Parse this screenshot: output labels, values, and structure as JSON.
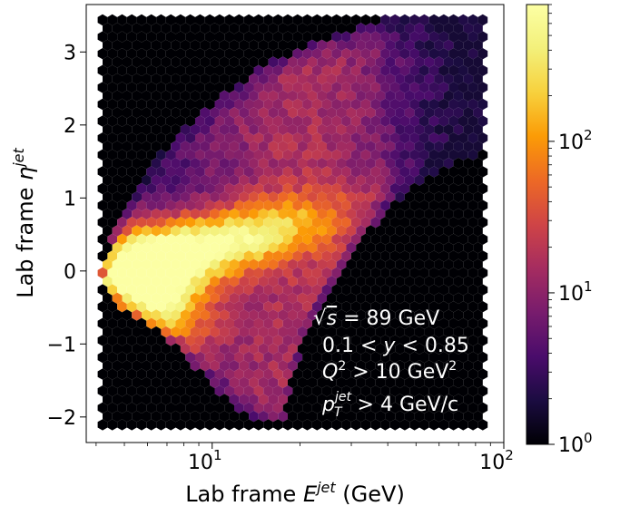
{
  "chart_data": {
    "type": "heatmap",
    "style": "hexbin",
    "colormap": "inferno",
    "xlabel": "Lab frame",
    "xlabel_symbol": "E",
    "xlabel_sup": "jet",
    "xlabel_unit": " (GeV)",
    "ylabel": "Lab frame",
    "ylabel_symbol": "η",
    "ylabel_sup": "jet",
    "x_scale": "log",
    "xlim": [
      3.7,
      100
    ],
    "ylim": [
      -2.35,
      3.65
    ],
    "x_ticks": [
      {
        "value": 10,
        "base": "10",
        "exp": "1"
      },
      {
        "value": 100,
        "base": "10",
        "exp": "2"
      }
    ],
    "y_ticks": [
      {
        "value": -2,
        "label": "−2"
      },
      {
        "value": -1,
        "label": "−1"
      },
      {
        "value": 0,
        "label": "0"
      },
      {
        "value": 1,
        "label": "1"
      },
      {
        "value": 2,
        "label": "2"
      },
      {
        "value": 3,
        "label": "3"
      }
    ],
    "colorbar": {
      "scale": "log",
      "range": [
        1,
        800
      ],
      "ticks": [
        {
          "value": 1,
          "base": "10",
          "exp": "0"
        },
        {
          "value": 10,
          "base": "10",
          "exp": "1"
        },
        {
          "value": 100,
          "base": "10",
          "exp": "2"
        }
      ]
    },
    "annotations": [
      {
        "main": "√s = 89 GeV"
      },
      {
        "main": "0.1 < y < 0.85"
      },
      {
        "main": "Q² > 10 GeV²"
      },
      {
        "main": "p_T^jet > 4 GeV/c"
      }
    ],
    "density_peak": {
      "E": 6,
      "eta": -0.4
    },
    "E_range": [
      4.1,
      90
    ],
    "eta_range": [
      -2.1,
      3.5
    ]
  }
}
